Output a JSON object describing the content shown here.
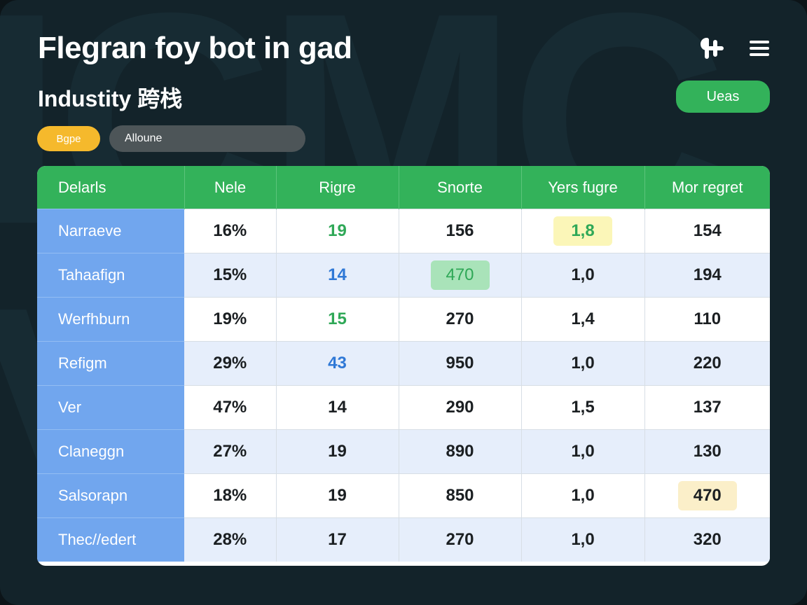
{
  "header": {
    "title": "Flegran foy bot in gad",
    "subtitle": "Industity 跨栈",
    "users_button": "Ueas",
    "add_icon": "add-icon",
    "menu_icon": "menu-icon"
  },
  "filters": {
    "tag_label": "Bgpe",
    "search_value": "Alloune"
  },
  "colors": {
    "accent_green": "#33b25a",
    "row_header_blue": "#71a6ee",
    "pill_yellow": "#f5b92c",
    "background": "#13232a"
  },
  "table": {
    "columns": [
      "Delarls",
      "Nele",
      "Rigre",
      "Snorte",
      "Yers fugre",
      "Mor regret"
    ],
    "rows": [
      {
        "label": "Narraeve",
        "cells": [
          "16%",
          "19",
          "156",
          "1,8",
          "154"
        ]
      },
      {
        "label": "Tahaafign",
        "cells": [
          "15%",
          "14",
          "470",
          "1,0",
          "194"
        ]
      },
      {
        "label": "Werfhburn",
        "cells": [
          "19%",
          "15",
          "270",
          "1,4",
          "110"
        ]
      },
      {
        "label": "Refigm",
        "cells": [
          "29%",
          "43",
          "950",
          "1,0",
          "220"
        ]
      },
      {
        "label": "Ver",
        "cells": [
          "47%",
          "14",
          "290",
          "1,5",
          "137"
        ]
      },
      {
        "label": "Claneggn",
        "cells": [
          "27%",
          "19",
          "890",
          "1,0",
          "130"
        ]
      },
      {
        "label": "Salsorapn",
        "cells": [
          "18%",
          "19",
          "850",
          "1,0",
          "470"
        ]
      },
      {
        "label": "Thec//edert",
        "cells": [
          "28%",
          "17",
          "270",
          "1,0",
          "320"
        ]
      }
    ]
  }
}
